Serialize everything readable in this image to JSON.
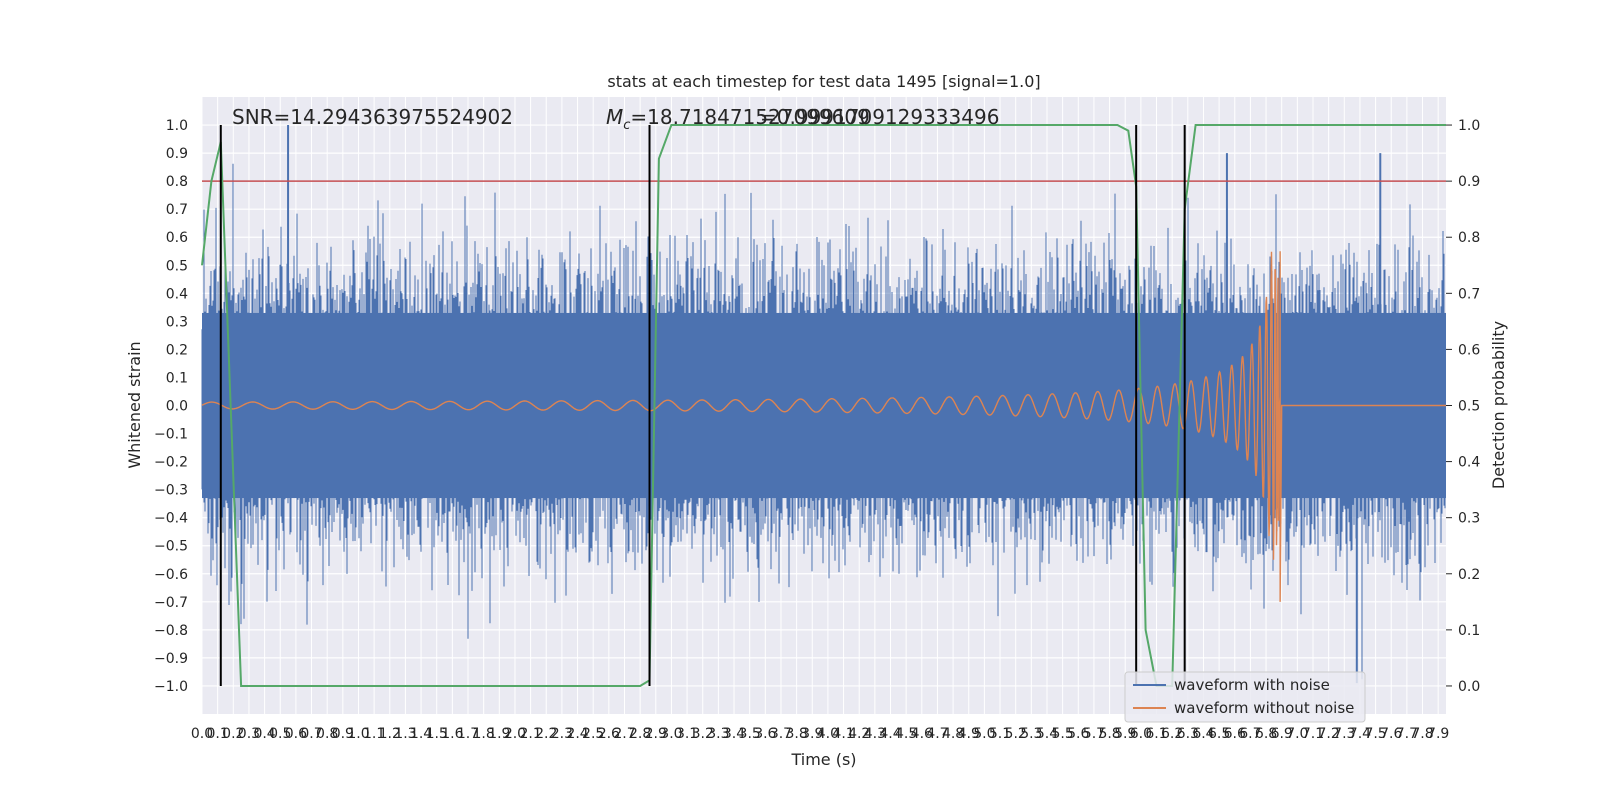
{
  "chart_data": {
    "type": "line",
    "title": "stats at each timestep for test data 1495 [signal=1.0]",
    "xlabel": "Time (s)",
    "ylabel": "Whitened strain",
    "y2label": "Detection probability",
    "xlim": [
      0.0,
      7.95
    ],
    "ylim": [
      -1.1,
      1.1
    ],
    "y2lim": [
      -0.05,
      1.05
    ],
    "grid": true,
    "legend_position": "lower-right",
    "x_ticks": [
      "0.0",
      "0.1",
      "0.2",
      "0.3",
      "0.4",
      "0.5",
      "0.6",
      "0.7",
      "0.8",
      "0.9",
      "1.0",
      "1.1",
      "1.2",
      "1.3",
      "1.4",
      "1.5",
      "1.6",
      "1.7",
      "1.8",
      "1.9",
      "2.0",
      "2.1",
      "2.2",
      "2.3",
      "2.4",
      "2.5",
      "2.6",
      "2.7",
      "2.8",
      "2.9",
      "3.0",
      "3.1",
      "3.2",
      "3.3",
      "3.4",
      "3.5",
      "3.6",
      "3.7",
      "3.8",
      "3.9",
      "4.0",
      "4.1",
      "4.2",
      "4.3",
      "4.4",
      "4.5",
      "4.6",
      "4.7",
      "4.8",
      "4.9",
      "5.0",
      "5.1",
      "5.2",
      "5.3",
      "5.4",
      "5.5",
      "5.6",
      "5.7",
      "5.8",
      "5.9",
      "6.0",
      "6.1",
      "6.2",
      "6.3",
      "6.4",
      "6.5",
      "6.6",
      "6.7",
      "6.8",
      "6.9",
      "7.0",
      "7.1",
      "7.2",
      "7.3",
      "7.4",
      "7.5",
      "7.6",
      "7.7",
      "7.8",
      "7.9"
    ],
    "y_ticks": [
      "1.0",
      "0.9",
      "0.8",
      "0.7",
      "0.6",
      "0.5",
      "0.4",
      "0.3",
      "0.2",
      "0.1",
      "0.0",
      "−0.1",
      "−0.2",
      "−0.3",
      "−0.4",
      "−0.5",
      "−0.6",
      "−0.7",
      "−0.8",
      "−0.9",
      "−1.0"
    ],
    "y2_ticks": [
      "1.0",
      "0.9",
      "0.8",
      "0.7",
      "0.6",
      "0.5",
      "0.4",
      "0.3",
      "0.2",
      "0.1",
      "0.0"
    ],
    "annotations": {
      "snr": "SNR=14.294363975524902",
      "mc": "=18.718471527099609",
      "mc_symbol": "M",
      "mc_sub": "c",
      "overlap": "=0.99917091293334 96",
      "overlap_text": "=0.9991709129333496"
    },
    "threshold": 0.9,
    "detection_markers_s": [
      0.12,
      2.86,
      5.97,
      6.28
    ],
    "series": [
      {
        "name": "waveform with noise",
        "color": "#4c72b0",
        "kind": "noise",
        "amplitude": 0.33,
        "peak": 1.0,
        "min": -0.99
      },
      {
        "name": "waveform without noise",
        "color": "#dd8452",
        "kind": "chirp",
        "merger_s": 6.89,
        "peak": 0.55,
        "min": -0.7
      },
      {
        "name": "detection probability",
        "color": "#55a868",
        "axis": "right",
        "x": [
          0.0,
          0.06,
          0.12,
          0.25,
          0.3,
          1.5,
          2.8,
          2.86,
          2.92,
          3.0,
          5.85,
          5.92,
          5.97,
          6.03,
          6.1,
          6.2,
          6.28,
          6.35,
          7.95
        ],
        "y": [
          0.75,
          0.9,
          0.97,
          0.0,
          0.0,
          0.0,
          0.0,
          0.01,
          0.94,
          1.0,
          1.0,
          0.99,
          0.89,
          0.1,
          0.0,
          0.0,
          0.85,
          1.0,
          1.0
        ]
      }
    ],
    "threshold_color": "#c44e52"
  },
  "legend": {
    "noise_label": "waveform with noise",
    "clean_label": "waveform without noise"
  }
}
